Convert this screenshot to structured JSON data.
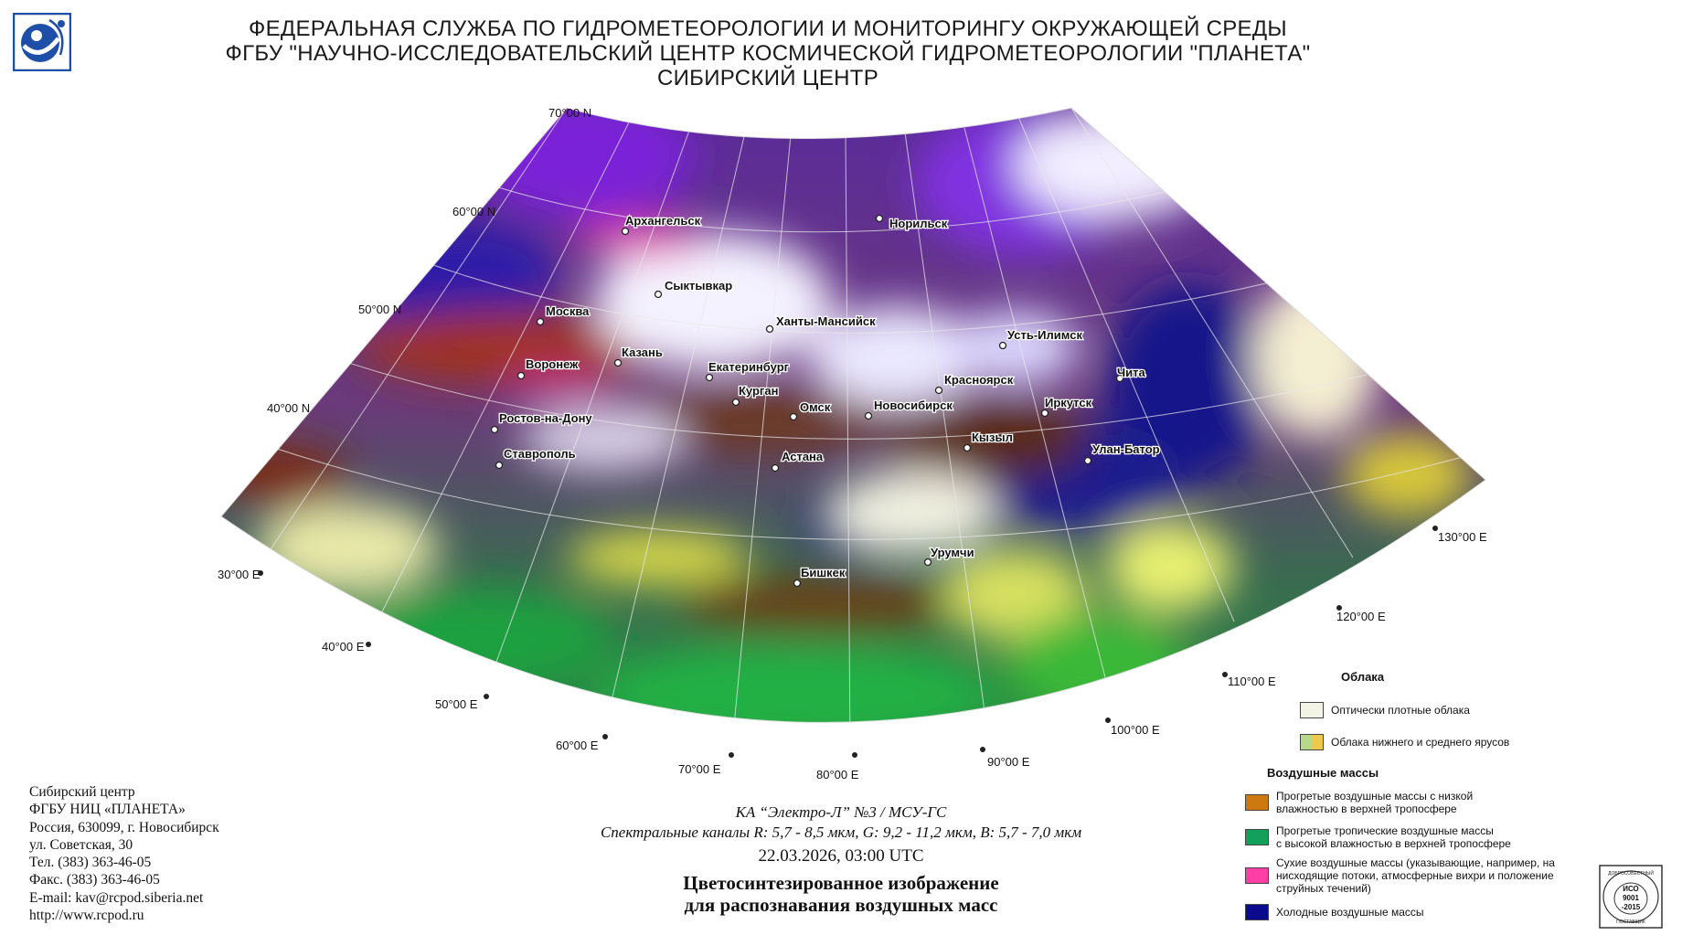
{
  "header": {
    "line1": "ФЕДЕРАЛЬНАЯ СЛУЖБА ПО ГИДРОМЕТЕОРОЛОГИИ И МОНИТОРИНГУ ОКРУЖАЮЩЕЙ СРЕДЫ",
    "line2": "ФГБУ \"НАУЧНО-ИССЛЕДОВАТЕЛЬСКИЙ ЦЕНТР КОСМИЧЕСКОЙ ГИДРОМЕТЕОРОЛОГИИ \"ПЛАНЕТА\"",
    "line3": "СИБИРСКИЙ ЦЕНТР"
  },
  "map": {
    "latitude_labels": [
      "70°00 N",
      "60°00 N",
      "50°00 N",
      "40°00 N"
    ],
    "longitude_labels": [
      "30°00 E",
      "40°00 E",
      "50°00 E",
      "60°00 E",
      "70°00 E",
      "80°00 E",
      "90°00 E",
      "100°00 E",
      "110°00 E",
      "120°00 E",
      "130°00 E"
    ],
    "cities": [
      "Архангельск",
      "Норильск",
      "Сыктывкар",
      "Москва",
      "Ханты-Мансийск",
      "Казань",
      "Усть-Илимск",
      "Воронеж",
      "Екатеринбург",
      "Чита",
      "Красноярск",
      "Курган",
      "Омск",
      "Новосибирск",
      "Иркутск",
      "Ростов-на-Дону",
      "Кызыл",
      "Улан-Батор",
      "Астана",
      "Ставрополь",
      "Урумчи",
      "Бишкек"
    ]
  },
  "contact": {
    "line1": "Сибирский центр",
    "line2": "ФГБУ НИЦ «ПЛАНЕТА»",
    "line3": "Россия, 630099, г. Новосибирск",
    "line4": "ул. Советская, 30",
    "line5": "Тел. (383) 363-46-05",
    "line6": "Факс. (383) 363-46-05",
    "line7": "E-mail: kav@rcpod.siberia.net",
    "line8": "http://www.rcpod.ru"
  },
  "caption": {
    "satellite": "КА “Электро-Л” №3 / МСУ-ГС",
    "channels": "Спектральные каналы R: 5,7 - 8,5 мкм, G: 9,2 - 11,2 мкм, B: 5,7 - 7,0 мкм",
    "datetime": "22.03.2026, 03:00 UTC",
    "title1": "Цветосинтезированное изображение",
    "title2": "для распознавания воздушных масс"
  },
  "legend": {
    "clouds_heading": "Облака",
    "clouds_dense": "Оптически плотные облака",
    "clouds_low_mid": "Облака нижнего и среднего ярусов",
    "airmasses_heading": "Воздушные массы",
    "warm_dry_1": "Прогретые воздушные массы с низкой",
    "warm_dry_2": "влажностью в верхней тропосфере",
    "tropical_1": "Прогретые тропичеcкие воздушные массы",
    "tropical_2": "с высокой влажностью в верхней тропосфере",
    "dry_1": "Сухие воздушные массы (указывающие, например, на",
    "dry_2": "нисходящие потоки, атмосферные вихри и положение",
    "dry_3": "струйных течений)",
    "cold": "Холодные воздушные массы"
  },
  "iso_badge": {
    "arc_text": "ДОБРОСОВЕСТНЫЙ",
    "line1": "ИСО",
    "line2": "9001",
    "line3": "-2015",
    "bottom": "ПОСТАВЩИК"
  },
  "colors": {
    "dense_clouds": "#f3f3e6",
    "low_mid_green": "#b9d98a",
    "low_mid_yellow": "#f0c84a",
    "warm_dry": "#cc7a10",
    "tropical": "#12a05a",
    "dry": "#ff3fa6",
    "cold": "#0a0a8c",
    "logo_blue": "#1e4fa8"
  },
  "icons": [
    "planeta-logo-icon",
    "iso-9001-badge-icon"
  ]
}
